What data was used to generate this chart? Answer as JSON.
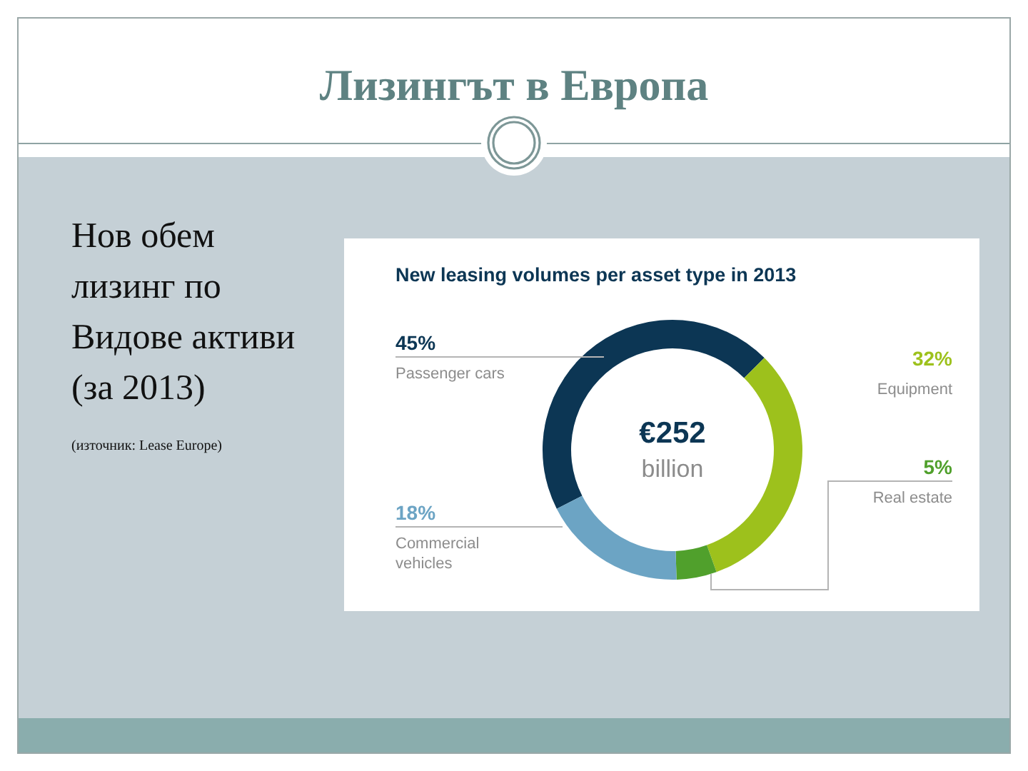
{
  "chart_data": {
    "type": "donut",
    "title": "New leasing volumes per asset type in 2013",
    "categories": [
      "Passenger cars",
      "Equipment",
      "Real estate",
      "Commercial vehicles"
    ],
    "values": [
      45,
      32,
      5,
      18
    ],
    "colors": [
      "#0c3654",
      "#9dc11c",
      "#50a02c",
      "#6ca4c4"
    ],
    "value_labels": [
      "45%",
      "32%",
      "5%",
      "18%"
    ],
    "annotations": [
      "€252",
      "billion",
      "Лизингът в Европа",
      "Нов обем лизинг по Видове активи (за 2013)",
      "(източник: Lease Europe)"
    ]
  }
}
